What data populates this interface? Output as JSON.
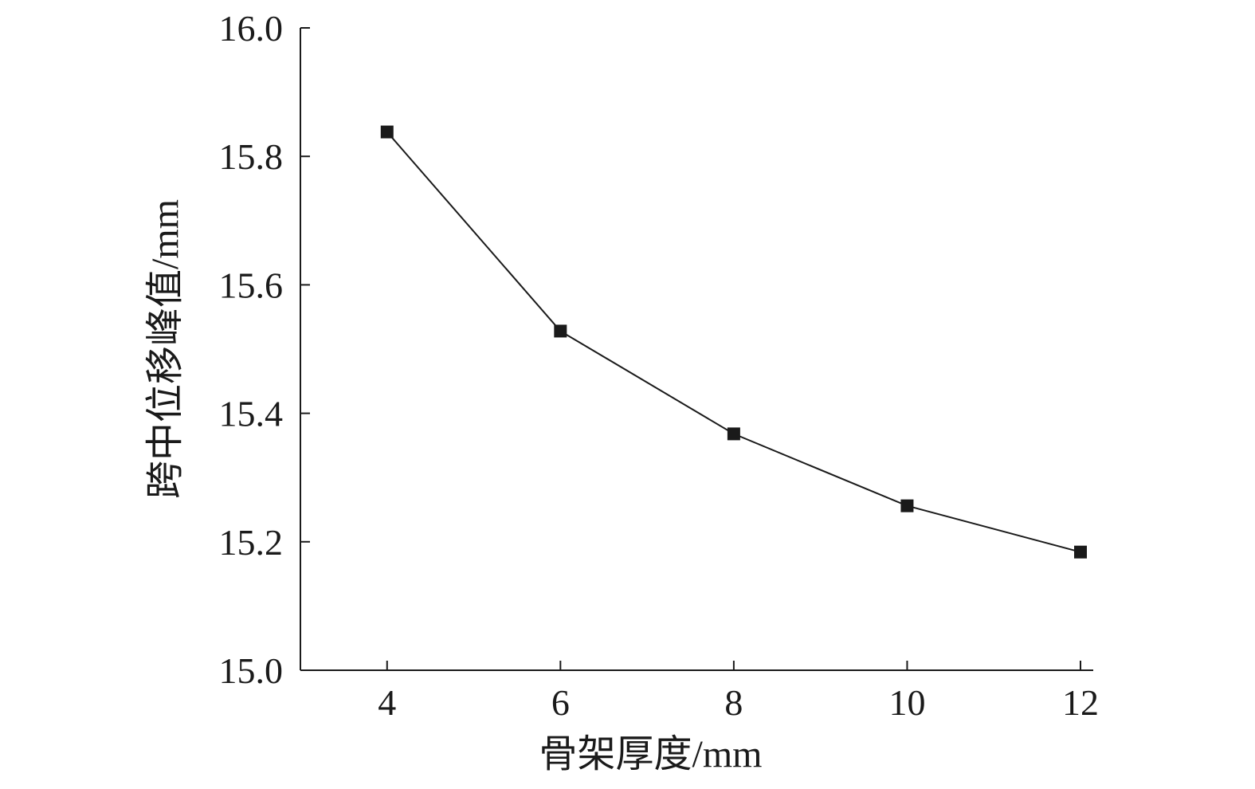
{
  "chart_data": {
    "type": "line",
    "title": "",
    "xlabel": "骨架厚度/mm",
    "ylabel": "跨中位移峰值/mm",
    "x": [
      4,
      6,
      8,
      10,
      12
    ],
    "xticks": [
      4,
      6,
      8,
      10,
      12
    ],
    "xlim": [
      3,
      12
    ],
    "ylim": [
      15.0,
      16.0
    ],
    "yticks": [
      "15.0",
      "15.2",
      "15.4",
      "15.6",
      "15.8",
      "16.0"
    ],
    "grid": false,
    "legend": "none",
    "series": [
      {
        "values": [
          15.838,
          15.528,
          15.368,
          15.256,
          15.184
        ],
        "color": "#1a1a1a",
        "marker": "square"
      }
    ]
  }
}
